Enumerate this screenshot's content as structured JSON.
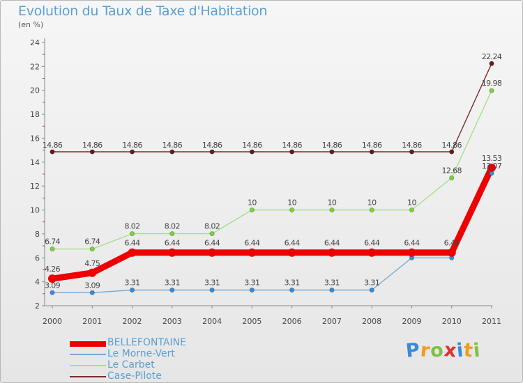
{
  "header": {
    "title": "Evolution du Taux de Taxe d'Habitation",
    "unit": "(en %)"
  },
  "chart_data": {
    "type": "line",
    "title": "Evolution du Taux de Taxe d'Habitation",
    "ylabel": "(en %)",
    "xlabel": "",
    "ylim": [
      2,
      24
    ],
    "yticks": [
      2,
      4,
      6,
      8,
      10,
      12,
      14,
      16,
      18,
      20,
      22,
      24
    ],
    "grid": false,
    "categories": [
      "2000",
      "2001",
      "2002",
      "2003",
      "2004",
      "2005",
      "2006",
      "2007",
      "2008",
      "2009",
      "2010",
      "2011"
    ],
    "series": [
      {
        "name": "Case-Pilote",
        "color": "#7a2a2a",
        "dot": "#6a1a1a",
        "values": [
          14.86,
          14.86,
          14.86,
          14.86,
          14.86,
          14.86,
          14.86,
          14.86,
          14.86,
          14.86,
          14.86,
          22.24
        ],
        "labels": [
          "14.86",
          "14.86",
          "14.86",
          "14.86",
          "14.86",
          "14.86",
          "14.86",
          "14.86",
          "14.86",
          "14.86",
          "14.86",
          "22.24"
        ]
      },
      {
        "name": "Le Carbet",
        "color": "#a6df8a",
        "dot": "#7fcf3f",
        "values": [
          6.74,
          6.74,
          8.02,
          8.02,
          8.02,
          10,
          10,
          10,
          10,
          10,
          12.68,
          19.98
        ],
        "labels": [
          "6.74",
          "6.74",
          "8.02",
          "8.02",
          "8.02",
          "10",
          "10",
          "10",
          "10",
          "10",
          "12.68",
          "19.98"
        ]
      },
      {
        "name": "Le Morne-Vert",
        "color": "#7aaad4",
        "dot": "#3a8ad8",
        "values": [
          3.09,
          3.09,
          3.31,
          3.31,
          3.31,
          3.31,
          3.31,
          3.31,
          3.31,
          6,
          6,
          13.07
        ],
        "labels": [
          "3.09",
          "3.09",
          "3.31",
          "3.31",
          "3.31",
          "3.31",
          "3.31",
          "3.31",
          "3.31",
          "",
          "",
          "13.07"
        ]
      },
      {
        "name": "BELLEFONTAINE",
        "color": "#ee0000",
        "dot": "#ee0000",
        "values": [
          4.26,
          4.75,
          6.44,
          6.44,
          6.44,
          6.44,
          6.44,
          6.44,
          6.44,
          6.44,
          6.44,
          13.53
        ],
        "labels": [
          "4.26",
          "4.75",
          "6.44",
          "6.44",
          "6.44",
          "6.44",
          "6.44",
          "6.44",
          "6.44",
          "6.44",
          "6.44",
          "13.53"
        ]
      }
    ]
  },
  "legend": {
    "items": [
      {
        "label": "BELLEFONTAINE",
        "color": "#ee0000"
      },
      {
        "label": "Le Morne-Vert",
        "color": "#7aaad4"
      },
      {
        "label": "Le Carbet",
        "color": "#a6df8a"
      },
      {
        "label": "Case-Pilote",
        "color": "#7a2a2a"
      }
    ]
  },
  "logo": {
    "text": "Proxiti",
    "letters": [
      "P",
      "r",
      "o",
      "x",
      "i",
      "t",
      "i"
    ],
    "colors": [
      "#3a8ad8",
      "#f39a1e",
      "#7cc242",
      "#e2322f",
      "#3a8ad8",
      "#f39a1e",
      "#7cc242"
    ]
  }
}
